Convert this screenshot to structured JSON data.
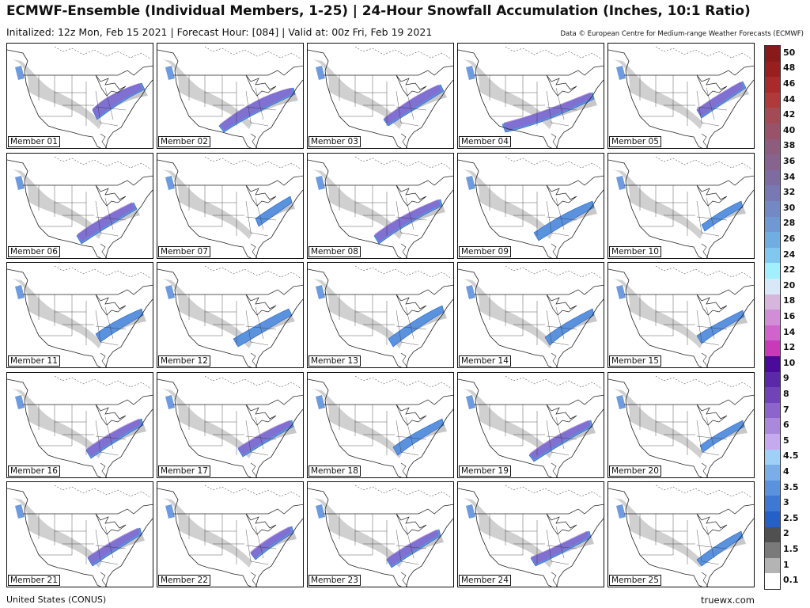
{
  "header": {
    "title": "ECMWF-Ensemble (Individual Members, 1-25) | 24-Hour Snowfall Accumulation (Inches, 10:1 Ratio)",
    "subtitle": "Initalized: 12z Mon, Feb 15 2021 | Forecast Hour: [084] | Valid at: 00z Fri, Feb 19 2021",
    "credit": "Data © European Centre for Medium-range Weather Forecasts (ECMWF)"
  },
  "footer": {
    "region": "United States (CONUS)",
    "brand": "truewx.com"
  },
  "members": [
    "Member 01",
    "Member 02",
    "Member 03",
    "Member 04",
    "Member 05",
    "Member 06",
    "Member 07",
    "Member 08",
    "Member 09",
    "Member 10",
    "Member 11",
    "Member 12",
    "Member 13",
    "Member 14",
    "Member 15",
    "Member 16",
    "Member 17",
    "Member 18",
    "Member 19",
    "Member 20",
    "Member 21",
    "Member 22",
    "Member 23",
    "Member 24",
    "Member 25"
  ],
  "legend": {
    "labels": [
      "50",
      "48",
      "46",
      "44",
      "42",
      "40",
      "38",
      "36",
      "34",
      "32",
      "30",
      "28",
      "26",
      "24",
      "22",
      "20",
      "18",
      "16",
      "14",
      "12",
      "10",
      "9",
      "8",
      "7",
      "6",
      "5",
      "4.5",
      "4",
      "3.5",
      "3",
      "2.5",
      "2",
      "1.5",
      "1",
      "0.1"
    ],
    "colors": [
      "#8a1a1a",
      "#991f1f",
      "#a82a2a",
      "#b03a3a",
      "#a44a55",
      "#98536a",
      "#8e5c7c",
      "#86648e",
      "#7e6ca0",
      "#7878b2",
      "#7488c4",
      "#7098d2",
      "#70aee2",
      "#80c8f0",
      "#a0f0ff",
      "#d8e8f8",
      "#d6b6dc",
      "#d18ed6",
      "#d064cc",
      "#c83ab8",
      "#4a0a9a",
      "#5a28a8",
      "#7044b8",
      "#8c64cc",
      "#aa88dc",
      "#c6aaf0",
      "#9fd0f8",
      "#7aaee8",
      "#5a92de",
      "#3c78d4",
      "#2460c8",
      "#505050",
      "#7a7a7a",
      "#b4b4b4",
      "#ffffff"
    ]
  }
}
